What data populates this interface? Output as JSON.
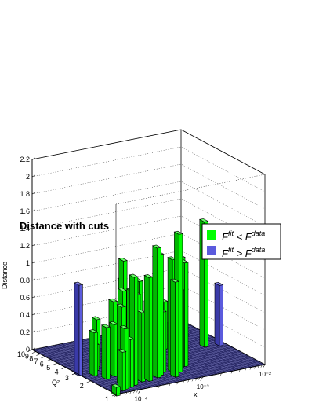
{
  "chart_data": {
    "type": "bar3d",
    "title": "Distance with cuts",
    "zlabel": "Distance",
    "xlabel": "x",
    "ylabel": "Q²",
    "zlim": [
      0,
      2.2
    ],
    "z_ticks": [
      "0",
      "0.2",
      "0.4",
      "0.6",
      "0.8",
      "1",
      "1.2",
      "1.4",
      "1.6",
      "1.8",
      "2",
      "2.2"
    ],
    "x_scale": "log",
    "x_ticks": [
      "10⁻⁴",
      "10⁻³",
      "10⁻²"
    ],
    "y_scale": "log",
    "y_ticks": [
      "1",
      "2",
      "3",
      "4",
      "5",
      "6",
      "7",
      "8",
      "9",
      "10"
    ],
    "grid": true,
    "legend_position": "top-right",
    "legend": [
      {
        "label": "F^fit < F^data",
        "color": "#00ff00"
      },
      {
        "label": "F^fit > F^data",
        "color": "#5b5bdd"
      }
    ],
    "bars": [
      {
        "x": 6e-05,
        "q2": 1.15,
        "value": 0.45,
        "series": 0
      },
      {
        "x": 7e-05,
        "q2": 1.2,
        "value": 0.7,
        "series": 0
      },
      {
        "x": 9e-05,
        "q2": 1.25,
        "value": 0.55,
        "series": 0
      },
      {
        "x": 0.00011,
        "q2": 1.3,
        "value": 1.25,
        "series": 0
      },
      {
        "x": 8e-05,
        "q2": 1.45,
        "value": 0.9,
        "series": 0
      },
      {
        "x": 0.00012,
        "q2": 1.5,
        "value": 1.05,
        "series": 0
      },
      {
        "x": 0.00016,
        "q2": 1.4,
        "value": 0.8,
        "series": 0
      },
      {
        "x": 0.0002,
        "q2": 1.35,
        "value": 1.2,
        "series": 0
      },
      {
        "x": 0.00025,
        "q2": 1.6,
        "value": 0.85,
        "series": 0
      },
      {
        "x": 0.0003,
        "q2": 1.45,
        "value": 1.5,
        "series": 0
      },
      {
        "x": 0.00036,
        "q2": 1.55,
        "value": 1.4,
        "series": 0
      },
      {
        "x": 0.00045,
        "q2": 1.7,
        "value": 0.7,
        "series": 0
      },
      {
        "x": 0.0005,
        "q2": 1.3,
        "value": 1.1,
        "series": 0
      },
      {
        "x": 0.0006,
        "q2": 1.6,
        "value": 1.3,
        "series": 0
      },
      {
        "x": 0.0007,
        "q2": 1.5,
        "value": 1.6,
        "series": 0
      },
      {
        "x": 0.0009,
        "q2": 1.75,
        "value": 0.9,
        "series": 0
      },
      {
        "x": 0.0011,
        "q2": 1.8,
        "value": 1.2,
        "series": 0
      },
      {
        "x": 0.0013,
        "q2": 2.3,
        "value": 0.5,
        "series": 0
      },
      {
        "x": 0.0004,
        "q2": 2.0,
        "value": 0.9,
        "series": 0
      },
      {
        "x": 0.00015,
        "q2": 2.2,
        "value": 1.3,
        "series": 0
      },
      {
        "x": 0.0001,
        "q2": 2.1,
        "value": 0.6,
        "series": 0
      },
      {
        "x": 0.00013,
        "q2": 2.6,
        "value": 0.8,
        "series": 0
      },
      {
        "x": 0.0002,
        "q2": 2.8,
        "value": 1.0,
        "series": 0
      },
      {
        "x": 0.0003,
        "q2": 2.4,
        "value": 1.0,
        "series": 0
      },
      {
        "x": 7e-05,
        "q2": 2.0,
        "value": 0.6,
        "series": 0
      },
      {
        "x": 6e-05,
        "q2": 2.5,
        "value": 0.5,
        "series": 0
      },
      {
        "x": 0.0001,
        "q2": 3.4,
        "value": 0.55,
        "series": 0
      },
      {
        "x": 0.00016,
        "q2": 3.2,
        "value": 0.4,
        "series": 0
      },
      {
        "x": 0.00025,
        "q2": 3.6,
        "value": 0.35,
        "series": 0
      },
      {
        "x": 8e-05,
        "q2": 3.0,
        "value": 0.3,
        "series": 0
      },
      {
        "x": 0.00012,
        "q2": 1.9,
        "value": 1.0,
        "series": 0
      },
      {
        "x": 0.00018,
        "q2": 1.75,
        "value": 0.95,
        "series": 0
      },
      {
        "x": 0.0025,
        "q2": 3.6,
        "value": 1.05,
        "series": 0
      },
      {
        "x": 0.005,
        "q2": 3.2,
        "value": 1.45,
        "series": 0
      },
      {
        "x": 0.0015,
        "q2": 4.0,
        "value": 0.55,
        "series": 0
      },
      {
        "x": 4e-05,
        "q2": 1.0,
        "value": 0.1,
        "series": 0
      },
      {
        "x": 4e-05,
        "q2": 2.8,
        "value": 1.05,
        "series": 1
      },
      {
        "x": 0.008,
        "q2": 3.0,
        "value": 0.7,
        "series": 1
      }
    ]
  }
}
